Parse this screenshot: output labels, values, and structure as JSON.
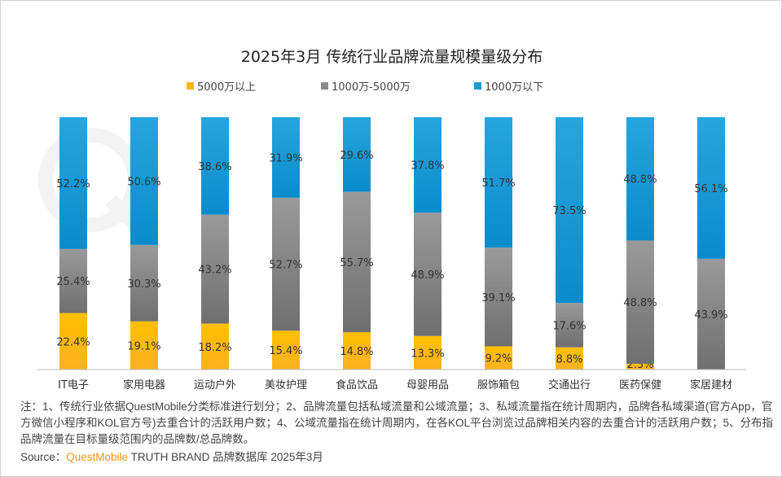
{
  "chart_data": {
    "type": "bar",
    "stacked": true,
    "title": "2025年3月 传统行业品牌流量规模量级分布",
    "categories": [
      "IT电子",
      "家用电器",
      "运动户外",
      "美妆护理",
      "食品饮品",
      "母婴用品",
      "服饰箱包",
      "交通出行",
      "医药保健",
      "家居建材"
    ],
    "series": [
      {
        "name": "5000万以上",
        "color": "#fbb710",
        "values": [
          22.4,
          19.1,
          18.2,
          15.4,
          14.8,
          13.3,
          9.2,
          8.8,
          2.3,
          0
        ]
      },
      {
        "name": "1000万-5000万",
        "color": "#8a8a8a",
        "values": [
          25.4,
          30.3,
          43.2,
          52.7,
          55.7,
          48.9,
          39.1,
          17.6,
          48.8,
          43.9
        ]
      },
      {
        "name": "1000万以下",
        "color": "#1a9ad6",
        "values": [
          52.2,
          50.6,
          38.6,
          31.9,
          29.6,
          37.8,
          51.7,
          73.5,
          48.8,
          56.1
        ]
      }
    ],
    "unit": "%",
    "ylim": [
      0,
      100
    ],
    "legend_position": "top",
    "grid": false
  },
  "watermark": "QUESTMOBILE",
  "notes": "注：1、传统行业依据QuestMobile分类标准进行划分；2、品牌流量包括私域流量和公域流量；3、私域流量指在统计周期内，品牌各私域渠道(官方App，官方微信小程序和KOL官方号)去重合计的活跃用户数；4、公域流量指在统计周期内，在各KOL平台浏览过品牌相关内容的去重合计的活跃用户数；5、分布指品牌流量在目标量级范围内的品牌数/总品牌数。",
  "source": {
    "label": "Source：",
    "brand": "QuestMobile",
    "rest": " TRUTH BRAND 品牌数据库 2025年3月"
  }
}
